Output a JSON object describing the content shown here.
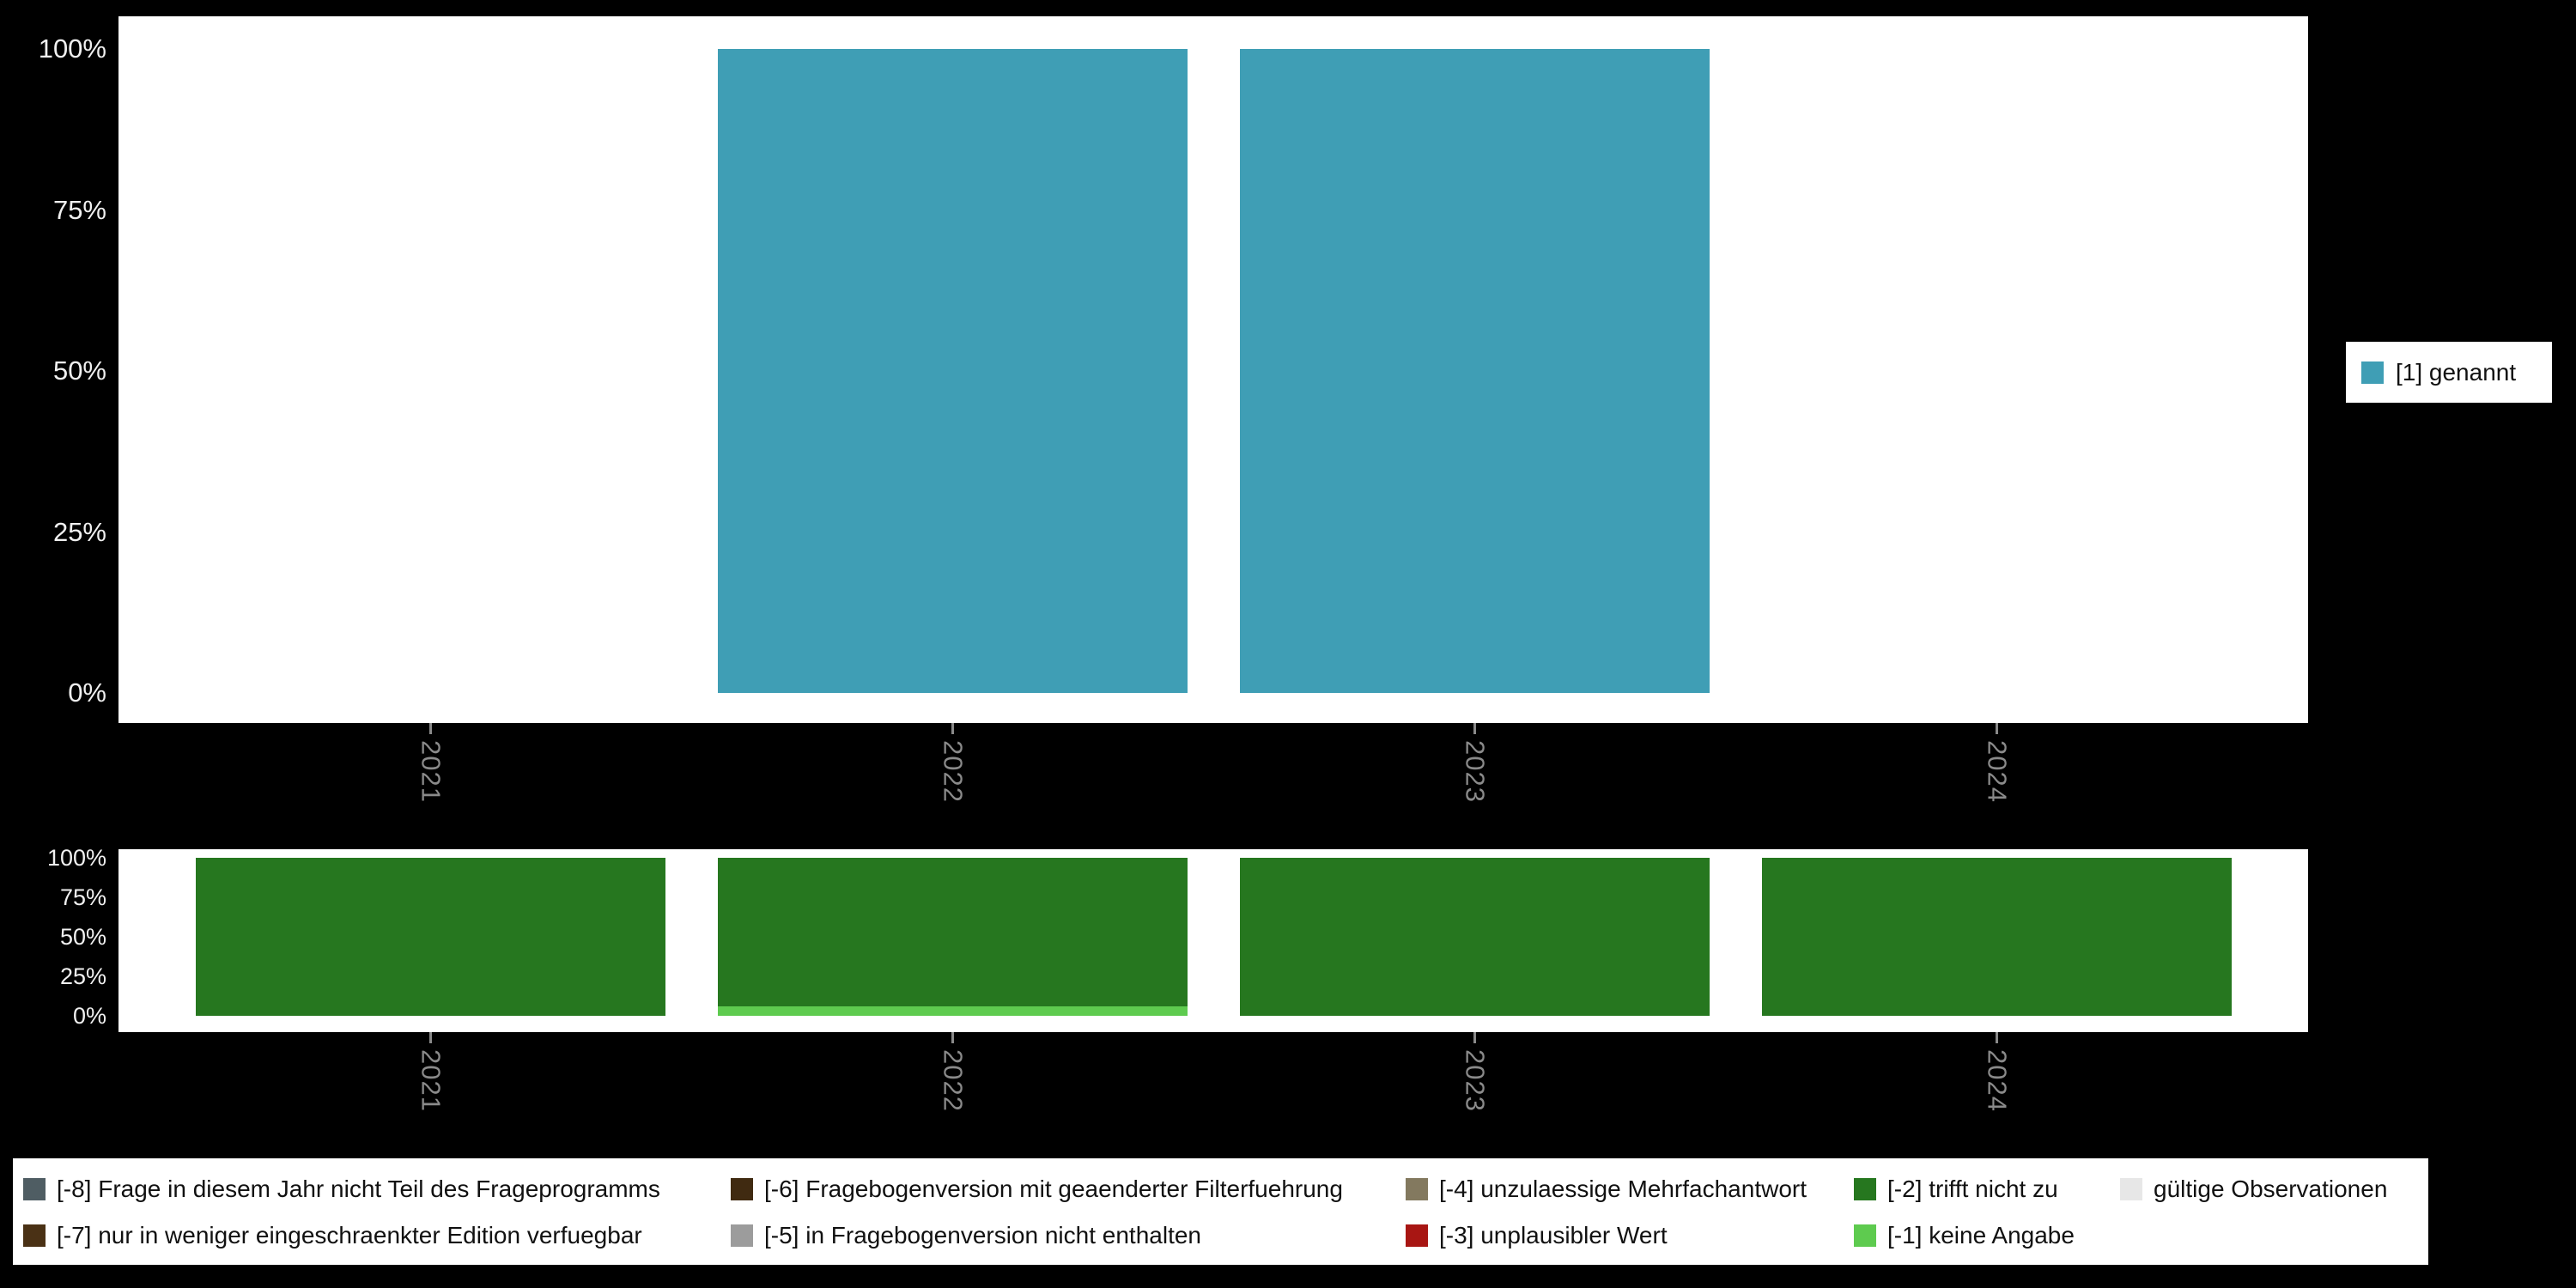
{
  "colors": {
    "page_background": "#000000",
    "panel_background": "#ffffff",
    "axis_percent_label": "#f0f0f0",
    "axis_year_label": "#8a8a8a",
    "genannt_teal": "#3f9eb5",
    "trifft_nicht_zu_green": "#26771f",
    "keine_angabe_lightgreen": "#5ecb4f"
  },
  "chart_data": [
    {
      "type": "bar",
      "stacked": true,
      "title": "",
      "categories": [
        "2021",
        "2022",
        "2023",
        "2024"
      ],
      "series": [
        {
          "name": "[1] genannt",
          "color": "#3f9eb5",
          "values": [
            null,
            100,
            100,
            null
          ]
        }
      ],
      "xlabel": "",
      "ylabel": "",
      "ylim": [
        0,
        100
      ],
      "yticks": [
        "0%",
        "25%",
        "50%",
        "75%",
        "100%"
      ],
      "grid": false,
      "legend_position": "right"
    },
    {
      "type": "bar",
      "stacked": true,
      "title": "",
      "categories": [
        "2021",
        "2022",
        "2023",
        "2024"
      ],
      "series": [
        {
          "name": "[-1] keine Angabe",
          "color": "#5ecb4f",
          "values": [
            0,
            6,
            0,
            0
          ]
        },
        {
          "name": "[-2] trifft nicht zu",
          "color": "#26771f",
          "values": [
            100,
            94,
            100,
            100
          ]
        }
      ],
      "xlabel": "",
      "ylabel": "",
      "ylim": [
        0,
        100
      ],
      "yticks": [
        "0%",
        "25%",
        "50%",
        "75%",
        "100%"
      ],
      "grid": false,
      "legend_position": "bottom"
    }
  ],
  "legend": {
    "top": {
      "items": [
        {
          "label": "[1] genannt",
          "color": "#3f9eb5"
        }
      ]
    },
    "bottom": {
      "rows": [
        [
          {
            "label": "[-8] Frage in diesem Jahr nicht Teil des Frageprogramms",
            "color": "#4f5d63"
          },
          {
            "label": "[-6] Fragebogenversion mit geaenderter Filterfuehrung",
            "color": "#402a11"
          },
          {
            "label": "[-4] unzulaessige Mehrfachantwort",
            "color": "#83795f"
          },
          {
            "label": "[-2] trifft nicht zu",
            "color": "#26771f"
          },
          {
            "label": "gültige Observationen",
            "color": "#e7e7e7"
          }
        ],
        [
          {
            "label": "[-7] nur in weniger eingeschraenkter Edition verfuegbar",
            "color": "#4a3115"
          },
          {
            "label": "[-5] in Fragebogenversion nicht enthalten",
            "color": "#9c9c9c"
          },
          {
            "label": "[-3] unplausibler Wert",
            "color": "#a81613"
          },
          {
            "label": "[-1] keine Angabe",
            "color": "#5ecb4f"
          }
        ]
      ]
    }
  }
}
